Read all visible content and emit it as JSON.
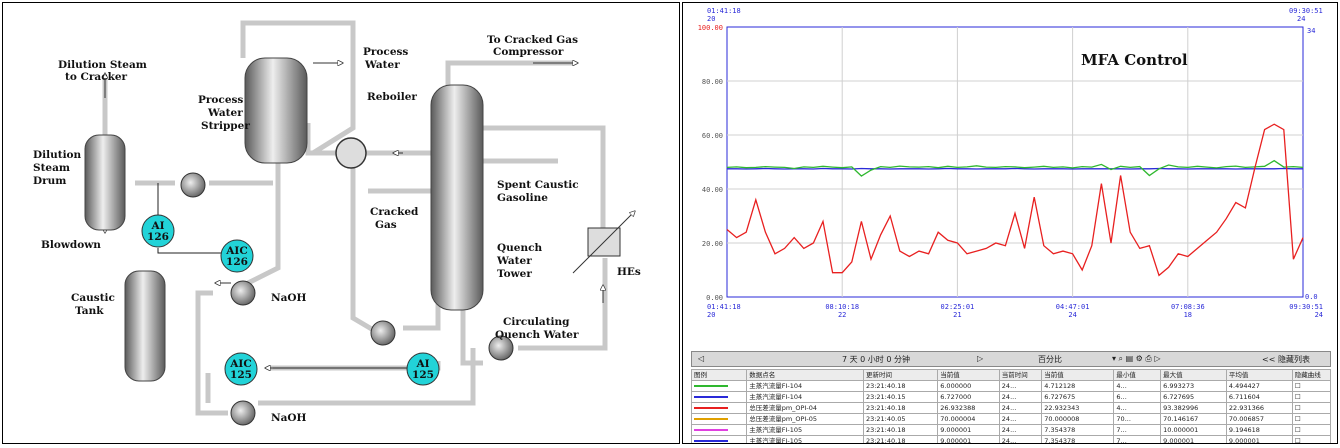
{
  "diagram": {
    "labels": {
      "dilution_steam_to_cracker": [
        "Dilution Steam",
        "to Cracker"
      ],
      "dilution_steam_drum": [
        "Dilution",
        "Steam",
        "Drum"
      ],
      "blowdown": "Blowdown",
      "process_water_stripper": [
        "Process",
        "Water",
        "Stripper"
      ],
      "process_water": [
        "Process",
        "Water"
      ],
      "reboiler": "Reboiler",
      "to_cracked_gas_compressor": [
        "To Cracked Gas",
        "Compressor"
      ],
      "spent_caustic_gasoline": [
        "Spent Caustic",
        "Gasoline"
      ],
      "cracked_gas": [
        "Cracked",
        "Gas"
      ],
      "quench_water_tower": [
        "Quench",
        "Water",
        "Tower"
      ],
      "hes": "HEs",
      "circulating_quench_water": [
        "Circulating",
        "Quench Water"
      ],
      "caustic_tank": [
        "Caustic",
        "Tank"
      ],
      "naoh_upper": "NaOH",
      "naoh_lower": "NaOH"
    },
    "instruments": [
      {
        "id": "ai126",
        "top": "AI",
        "bottom": "126"
      },
      {
        "id": "aic126",
        "top": "AIC",
        "bottom": "126"
      },
      {
        "id": "ai125",
        "top": "AI",
        "bottom": "125"
      },
      {
        "id": "aic125",
        "top": "AIC",
        "bottom": "125"
      }
    ],
    "colors": {
      "vessel_dark": "#707070",
      "vessel_light": "#e8e8e8",
      "pipe": "#c8c8c8",
      "instrument": "#22d3d8"
    }
  },
  "trend": {
    "title": "MFA Control",
    "top_left_time": [
      "01:41:18",
      "20"
    ],
    "top_right_time": [
      "09:30:51",
      "24"
    ],
    "right_axis_top": "34",
    "right_axis_bottom": "0.0",
    "x_ticks": [
      {
        "time": "01:41:18",
        "day": "20"
      },
      {
        "time": "08:10:18",
        "day": "22"
      },
      {
        "time": "02:25:01",
        "day": "21"
      },
      {
        "time": "04:47:01",
        "day": "24"
      },
      {
        "time": "07:08:36",
        "day": "18"
      },
      {
        "time": "09:30:51",
        "day": "24"
      }
    ],
    "toolbar": {
      "range": "7 天 0 小时 0 分钟",
      "unit": "百分比",
      "right": "<< 隐藏列表"
    },
    "table_headers": [
      "图例",
      "数据点名",
      "更新时间",
      "当前值",
      "当前时间",
      "当前值",
      "最小值",
      "最大值",
      "平均值",
      "隐藏曲线"
    ],
    "table_rows": [
      {
        "color": "#2fb82f",
        "name": "主蒸汽流量FI-104",
        "time": "23:21:40.18",
        "val": "6.000000",
        "t2": "24...",
        "cur": "4.712128",
        "min": "4...",
        "max": "6.993273",
        "avg": "4.494427"
      },
      {
        "color": "#2a2ad8",
        "name": "主蒸汽流量FI-104",
        "time": "23:21:40.15",
        "val": "6.727000",
        "t2": "24...",
        "cur": "6.727675",
        "min": "6...",
        "max": "6.727695",
        "avg": "6.711604"
      },
      {
        "color": "#e82020",
        "name": "总压差流量pm_OPI-04",
        "time": "23:21:40.18",
        "val": "26.932388",
        "t2": "24...",
        "cur": "22.932343",
        "min": "4...",
        "max": "93.382996",
        "avg": "22.931366"
      },
      {
        "color": "#e0a000",
        "name": "总压差流量pm_OPI-05",
        "time": "23:21:40.05",
        "val": "70.000004",
        "t2": "24...",
        "cur": "70.000008",
        "min": "70...",
        "max": "70.146167",
        "avg": "70.006857"
      },
      {
        "color": "#e040e0",
        "name": "主蒸汽流量FI-105",
        "time": "23:21:40.18",
        "val": "9.000001",
        "t2": "24...",
        "cur": "7.354378",
        "min": "7...",
        "max": "10.000001",
        "avg": "9.194618"
      },
      {
        "color": "#2a2ad8",
        "name": "主蒸汽流量FI-105",
        "time": "23:21:40.18",
        "val": "9.000001",
        "t2": "24...",
        "cur": "7.354378",
        "min": "7...",
        "max": "9.000001",
        "avg": "9.000001"
      }
    ]
  },
  "chart_data": {
    "type": "line",
    "title": "MFA Control",
    "xlabel": "",
    "ylabel": "",
    "y_ticks": [
      "100.00",
      "80.00",
      "60.00",
      "40.00",
      "20.00",
      "0.00"
    ],
    "ylim": [
      0,
      100
    ],
    "grid": true,
    "series": [
      {
        "color": "#2a2ad8",
        "values": [
          47.5,
          47.5,
          47.4,
          47.5,
          47.6,
          47.5,
          47.4,
          47.5,
          47.5,
          47.4,
          47.6,
          47.5,
          47.5,
          47.4,
          47.6,
          47.5,
          47.5,
          47.4,
          47.5,
          47.5,
          47.5,
          47.4,
          47.5,
          47.6,
          47.5,
          47.5,
          47.4,
          47.5,
          47.5,
          47.5,
          47.6,
          47.5,
          47.4,
          47.5,
          47.5,
          47.5,
          47.4,
          47.5,
          47.5,
          47.5,
          47.5,
          47.5,
          47.4,
          47.5,
          47.5,
          47.6,
          47.5,
          47.5,
          47.4,
          47.5,
          47.5,
          47.5,
          47.5,
          47.4,
          47.5,
          47.5,
          47.5,
          47.5,
          47.6,
          47.5,
          47.5
        ]
      },
      {
        "color": "#2fb82f",
        "values": [
          48.0,
          48.2,
          47.9,
          48.0,
          48.3,
          48.1,
          48.0,
          47.6,
          48.2,
          48.0,
          48.4,
          48.1,
          47.9,
          48.2,
          44.8,
          47.0,
          48.3,
          48.0,
          48.5,
          48.2,
          48.1,
          48.3,
          47.9,
          48.4,
          48.0,
          48.2,
          48.6,
          48.1,
          48.0,
          48.3,
          48.2,
          47.9,
          48.1,
          48.4,
          48.0,
          48.2,
          47.8,
          48.3,
          48.1,
          49.1,
          47.2,
          48.4,
          48.0,
          48.3,
          45.0,
          47.5,
          48.9,
          48.2,
          48.0,
          48.4,
          48.1,
          47.8,
          48.3,
          48.5,
          48.0,
          48.2,
          48.4,
          50.5,
          48.1,
          48.3,
          48.0
        ]
      },
      {
        "color": "#e82020",
        "values": [
          25,
          22,
          24,
          36,
          24,
          16,
          18,
          22,
          18,
          20,
          28,
          9,
          9,
          13,
          28,
          14,
          23,
          30,
          17,
          15,
          17,
          16,
          24,
          21,
          20,
          16,
          17,
          18,
          20,
          19,
          31,
          18,
          37,
          19,
          16,
          17,
          16,
          10,
          19,
          42,
          20,
          45,
          24,
          18,
          19,
          8,
          11,
          16,
          15,
          18,
          21,
          24,
          29,
          35,
          33,
          48,
          62,
          64,
          62,
          14,
          22
        ]
      }
    ]
  }
}
